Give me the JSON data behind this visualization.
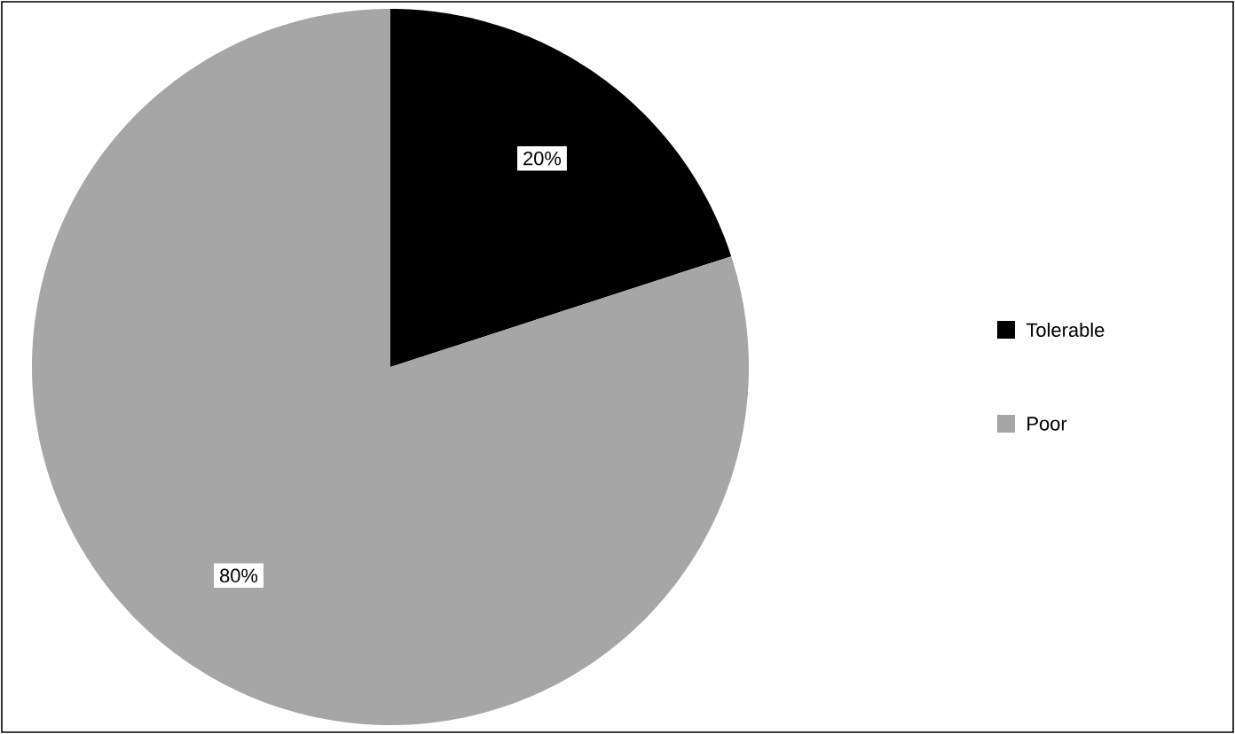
{
  "chart_data": {
    "type": "pie",
    "categories": [
      "Tolerable",
      "Poor"
    ],
    "values": [
      20,
      80
    ],
    "colors": [
      "#000000",
      "#a6a6a6"
    ],
    "value_labels": [
      "20%",
      "80%"
    ],
    "legend": "right"
  }
}
